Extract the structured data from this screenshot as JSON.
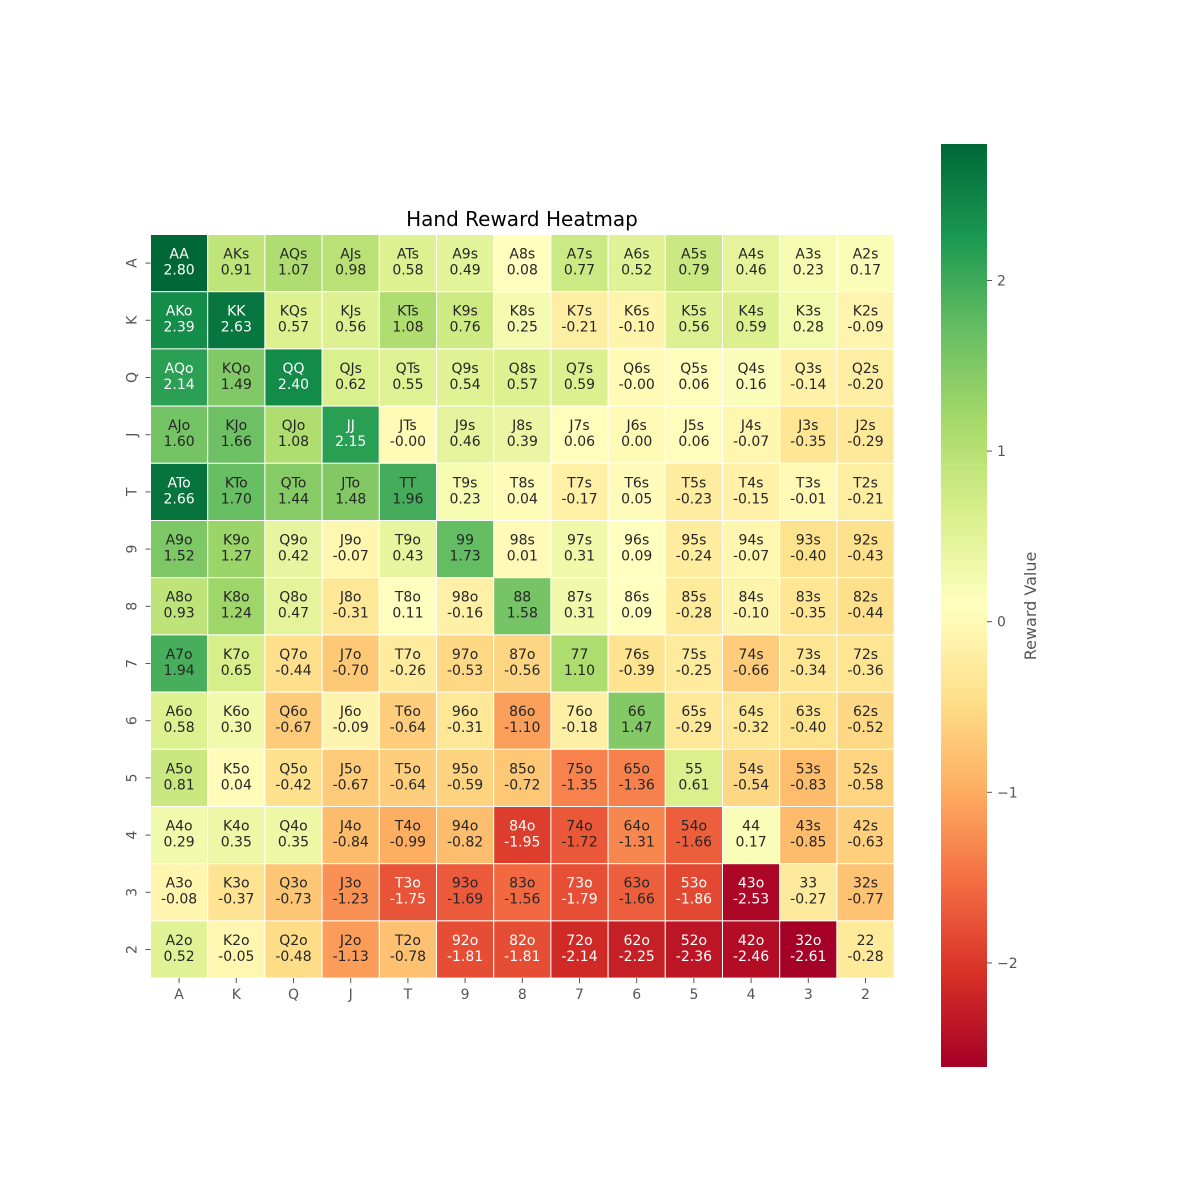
{
  "chart_data": {
    "type": "heatmap",
    "title": "Hand Reward Heatmap",
    "xlabel": "",
    "ylabel": "",
    "x_categories": [
      "A",
      "K",
      "Q",
      "J",
      "T",
      "9",
      "8",
      "7",
      "6",
      "5",
      "4",
      "3",
      "2"
    ],
    "y_categories": [
      "A",
      "K",
      "Q",
      "J",
      "T",
      "9",
      "8",
      "7",
      "6",
      "5",
      "4",
      "3",
      "2"
    ],
    "hands": [
      [
        "AA",
        "AKs",
        "AQs",
        "AJs",
        "ATs",
        "A9s",
        "A8s",
        "A7s",
        "A6s",
        "A5s",
        "A4s",
        "A3s",
        "A2s"
      ],
      [
        "AKo",
        "KK",
        "KQs",
        "KJs",
        "KTs",
        "K9s",
        "K8s",
        "K7s",
        "K6s",
        "K5s",
        "K4s",
        "K3s",
        "K2s"
      ],
      [
        "AQo",
        "KQo",
        "QQ",
        "QJs",
        "QTs",
        "Q9s",
        "Q8s",
        "Q7s",
        "Q6s",
        "Q5s",
        "Q4s",
        "Q3s",
        "Q2s"
      ],
      [
        "AJo",
        "KJo",
        "QJo",
        "JJ",
        "JTs",
        "J9s",
        "J8s",
        "J7s",
        "J6s",
        "J5s",
        "J4s",
        "J3s",
        "J2s"
      ],
      [
        "ATo",
        "KTo",
        "QTo",
        "JTo",
        "TT",
        "T9s",
        "T8s",
        "T7s",
        "T6s",
        "T5s",
        "T4s",
        "T3s",
        "T2s"
      ],
      [
        "A9o",
        "K9o",
        "Q9o",
        "J9o",
        "T9o",
        "99",
        "98s",
        "97s",
        "96s",
        "95s",
        "94s",
        "93s",
        "92s"
      ],
      [
        "A8o",
        "K8o",
        "Q8o",
        "J8o",
        "T8o",
        "98o",
        "88",
        "87s",
        "86s",
        "85s",
        "84s",
        "83s",
        "82s"
      ],
      [
        "A7o",
        "K7o",
        "Q7o",
        "J7o",
        "T7o",
        "97o",
        "87o",
        "77",
        "76s",
        "75s",
        "74s",
        "73s",
        "72s"
      ],
      [
        "A6o",
        "K6o",
        "Q6o",
        "J6o",
        "T6o",
        "96o",
        "86o",
        "76o",
        "66",
        "65s",
        "64s",
        "63s",
        "62s"
      ],
      [
        "A5o",
        "K5o",
        "Q5o",
        "J5o",
        "T5o",
        "95o",
        "85o",
        "75o",
        "65o",
        "55",
        "54s",
        "53s",
        "52s"
      ],
      [
        "A4o",
        "K4o",
        "Q4o",
        "J4o",
        "T4o",
        "94o",
        "84o",
        "74o",
        "64o",
        "54o",
        "44",
        "43s",
        "42s"
      ],
      [
        "A3o",
        "K3o",
        "Q3o",
        "J3o",
        "T3o",
        "93o",
        "83o",
        "73o",
        "63o",
        "53o",
        "43o",
        "33",
        "32s"
      ],
      [
        "A2o",
        "K2o",
        "Q2o",
        "J2o",
        "T2o",
        "92o",
        "82o",
        "72o",
        "62o",
        "52o",
        "42o",
        "32o",
        "22"
      ]
    ],
    "value_labels": [
      [
        "2.80",
        "0.91",
        "1.07",
        "0.98",
        "0.58",
        "0.49",
        "0.08",
        "0.77",
        "0.52",
        "0.79",
        "0.46",
        "0.23",
        "0.17"
      ],
      [
        "2.39",
        "2.63",
        "0.57",
        "0.56",
        "1.08",
        "0.76",
        "0.25",
        "-0.21",
        "-0.10",
        "0.56",
        "0.59",
        "0.28",
        "-0.09"
      ],
      [
        "2.14",
        "1.49",
        "2.40",
        "0.62",
        "0.55",
        "0.54",
        "0.57",
        "0.59",
        "-0.00",
        "0.06",
        "0.16",
        "-0.14",
        "-0.20"
      ],
      [
        "1.60",
        "1.66",
        "1.08",
        "2.15",
        "-0.00",
        "0.46",
        "0.39",
        "0.06",
        "0.00",
        "0.06",
        "-0.07",
        "-0.35",
        "-0.29"
      ],
      [
        "2.66",
        "1.70",
        "1.44",
        "1.48",
        "1.96",
        "0.23",
        "0.04",
        "-0.17",
        "0.05",
        "-0.23",
        "-0.15",
        "-0.01",
        "-0.21"
      ],
      [
        "1.52",
        "1.27",
        "0.42",
        "-0.07",
        "0.43",
        "1.73",
        "0.01",
        "0.31",
        "0.09",
        "-0.24",
        "-0.07",
        "-0.40",
        "-0.43"
      ],
      [
        "0.93",
        "1.24",
        "0.47",
        "-0.31",
        "0.11",
        "-0.16",
        "1.58",
        "0.31",
        "0.09",
        "-0.28",
        "-0.10",
        "-0.35",
        "-0.44"
      ],
      [
        "1.94",
        "0.65",
        "-0.44",
        "-0.70",
        "-0.26",
        "-0.53",
        "-0.56",
        "1.10",
        "-0.39",
        "-0.25",
        "-0.66",
        "-0.34",
        "-0.36"
      ],
      [
        "0.58",
        "0.30",
        "-0.67",
        "-0.09",
        "-0.64",
        "-0.31",
        "-1.10",
        "-0.18",
        "1.47",
        "-0.29",
        "-0.32",
        "-0.40",
        "-0.52"
      ],
      [
        "0.81",
        "0.04",
        "-0.42",
        "-0.67",
        "-0.64",
        "-0.59",
        "-0.72",
        "-1.35",
        "-1.36",
        "0.61",
        "-0.54",
        "-0.83",
        "-0.58"
      ],
      [
        "0.29",
        "0.35",
        "0.35",
        "-0.84",
        "-0.99",
        "-0.82",
        "-1.95",
        "-1.72",
        "-1.31",
        "-1.66",
        "0.17",
        "-0.85",
        "-0.63"
      ],
      [
        "-0.08",
        "-0.37",
        "-0.73",
        "-1.23",
        "-1.75",
        "-1.69",
        "-1.56",
        "-1.79",
        "-1.66",
        "-1.86",
        "-2.53",
        "-0.27",
        "-0.77"
      ],
      [
        "0.52",
        "-0.05",
        "-0.48",
        "-1.13",
        "-0.78",
        "-1.81",
        "-1.81",
        "-2.14",
        "-2.25",
        "-2.36",
        "-2.46",
        "-2.61",
        "-0.28"
      ]
    ],
    "colorbar": {
      "label": "Reward Value",
      "vmin": -2.61,
      "vmax": 2.8,
      "ticks": [
        -2,
        -1,
        0,
        1,
        2
      ],
      "tick_labels": [
        "−2",
        "−1",
        "0",
        "1",
        "2"
      ],
      "colormap": "RdYlGn",
      "colors": [
        "#a50026",
        "#d73027",
        "#f46d43",
        "#fdae61",
        "#fee08b",
        "#ffffbf",
        "#d9ef8b",
        "#a6d96a",
        "#66bd63",
        "#1a9850",
        "#006837"
      ]
    },
    "grid": false
  }
}
